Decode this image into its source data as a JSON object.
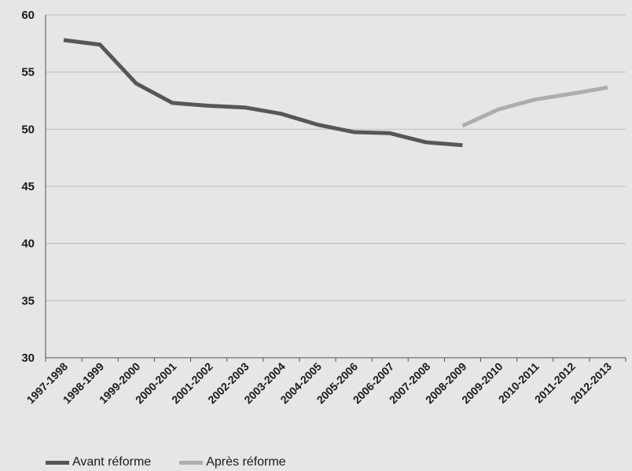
{
  "chart_data": {
    "type": "line",
    "categories": [
      "1997-1998",
      "1998-1999",
      "1999-2000",
      "2000-2001",
      "2001-2002",
      "2002-2003",
      "2003-2004",
      "2004-2005",
      "2005-2006",
      "2006-2007",
      "2007-2008",
      "2008-2009",
      "2009-2010",
      "2010-2011",
      "2011-2012",
      "2012-2013"
    ],
    "series": [
      {
        "name": "Avant réforme",
        "color": "#575757",
        "values": [
          57.8,
          57.4,
          54.0,
          52.3,
          52.05,
          51.9,
          51.35,
          50.4,
          49.75,
          49.65,
          48.85,
          48.6,
          null,
          null,
          null,
          null
        ]
      },
      {
        "name": "Après réforme",
        "color": "#adadad",
        "values": [
          null,
          null,
          null,
          null,
          null,
          null,
          null,
          null,
          null,
          null,
          null,
          50.3,
          51.75,
          52.6,
          53.1,
          53.65
        ]
      }
    ],
    "ylim": [
      30,
      60
    ],
    "yticks": [
      30,
      35,
      40,
      45,
      50,
      55,
      60
    ],
    "grid": true,
    "legend_position": "bottom-left",
    "title": "",
    "xlabel": "",
    "ylabel": ""
  }
}
